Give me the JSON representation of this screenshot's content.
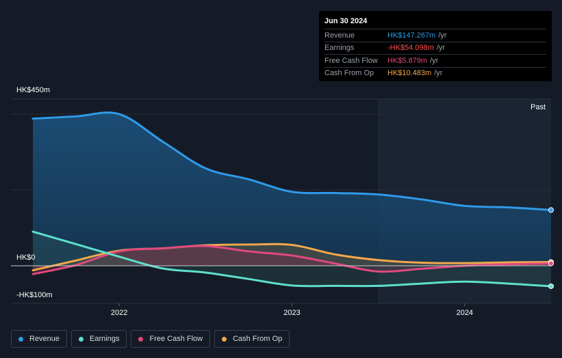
{
  "tooltip": {
    "date": "Jun 30 2024",
    "rows": [
      {
        "label": "Revenue",
        "value": "HK$147.267m",
        "unit": "/yr",
        "color": "#2f9be9"
      },
      {
        "label": "Earnings",
        "value": "-HK$54.098m",
        "unit": "/yr",
        "color": "#ff4d4d"
      },
      {
        "label": "Free Cash Flow",
        "value": "HK$5.879m",
        "unit": "/yr",
        "color": "#e0497f"
      },
      {
        "label": "Cash From Op",
        "value": "HK$10.483m",
        "unit": "/yr",
        "color": "#f2a84a"
      }
    ]
  },
  "past_label": "Past",
  "chart_data": {
    "type": "area",
    "title": "",
    "y_tick_labels": {
      "top": "HK$450m",
      "zero": "HK$0",
      "bottom": "-HK$100m"
    },
    "ylim": [
      -100,
      450
    ],
    "xlim": [
      2021.5,
      2024.5
    ],
    "x_ticks": [
      2022,
      2023,
      2024
    ],
    "x_tick_labels": [
      "2022",
      "2023",
      "2024"
    ],
    "past_start": 2023.5,
    "grid": true,
    "legend_position": "bottom-left",
    "series": [
      {
        "name": "Revenue",
        "color": "#2f9be9",
        "x": [
          2021.5,
          2021.75,
          2022.0,
          2022.25,
          2022.5,
          2022.75,
          2023.0,
          2023.25,
          2023.5,
          2023.75,
          2024.0,
          2024.25,
          2024.5
        ],
        "values": [
          388,
          394,
          400,
          328,
          257,
          228,
          195,
          192,
          188,
          175,
          158,
          154,
          147
        ]
      },
      {
        "name": "Earnings",
        "color": "#5ee0cc",
        "x": [
          2021.5,
          2021.75,
          2022.0,
          2022.25,
          2022.5,
          2022.75,
          2023.0,
          2023.25,
          2023.5,
          2023.75,
          2024.0,
          2024.25,
          2024.5
        ],
        "values": [
          90,
          57,
          24,
          -7,
          -18,
          -35,
          -52,
          -53,
          -53,
          -47,
          -42,
          -47,
          -54
        ]
      },
      {
        "name": "Free Cash Flow",
        "color": "#e0497f",
        "x": [
          2021.5,
          2021.75,
          2022.0,
          2022.25,
          2022.5,
          2022.75,
          2023.0,
          2023.25,
          2023.5,
          2023.75,
          2024.0,
          2024.25,
          2024.5
        ],
        "values": [
          -22,
          2,
          38,
          46,
          52,
          38,
          27,
          6,
          -15,
          -8,
          0,
          4,
          6
        ]
      },
      {
        "name": "Cash From Op",
        "color": "#f2a84a",
        "x": [
          2021.5,
          2021.75,
          2022.0,
          2022.25,
          2022.5,
          2022.75,
          2023.0,
          2023.25,
          2023.5,
          2023.75,
          2024.0,
          2024.25,
          2024.5
        ],
        "values": [
          -12,
          14,
          40,
          46,
          54,
          56,
          55,
          30,
          15,
          8,
          7,
          9,
          10
        ]
      }
    ]
  },
  "legend": [
    {
      "label": "Revenue",
      "color": "#2f9be9"
    },
    {
      "label": "Earnings",
      "color": "#5ee0cc"
    },
    {
      "label": "Free Cash Flow",
      "color": "#e0497f"
    },
    {
      "label": "Cash From Op",
      "color": "#f2a84a"
    }
  ]
}
